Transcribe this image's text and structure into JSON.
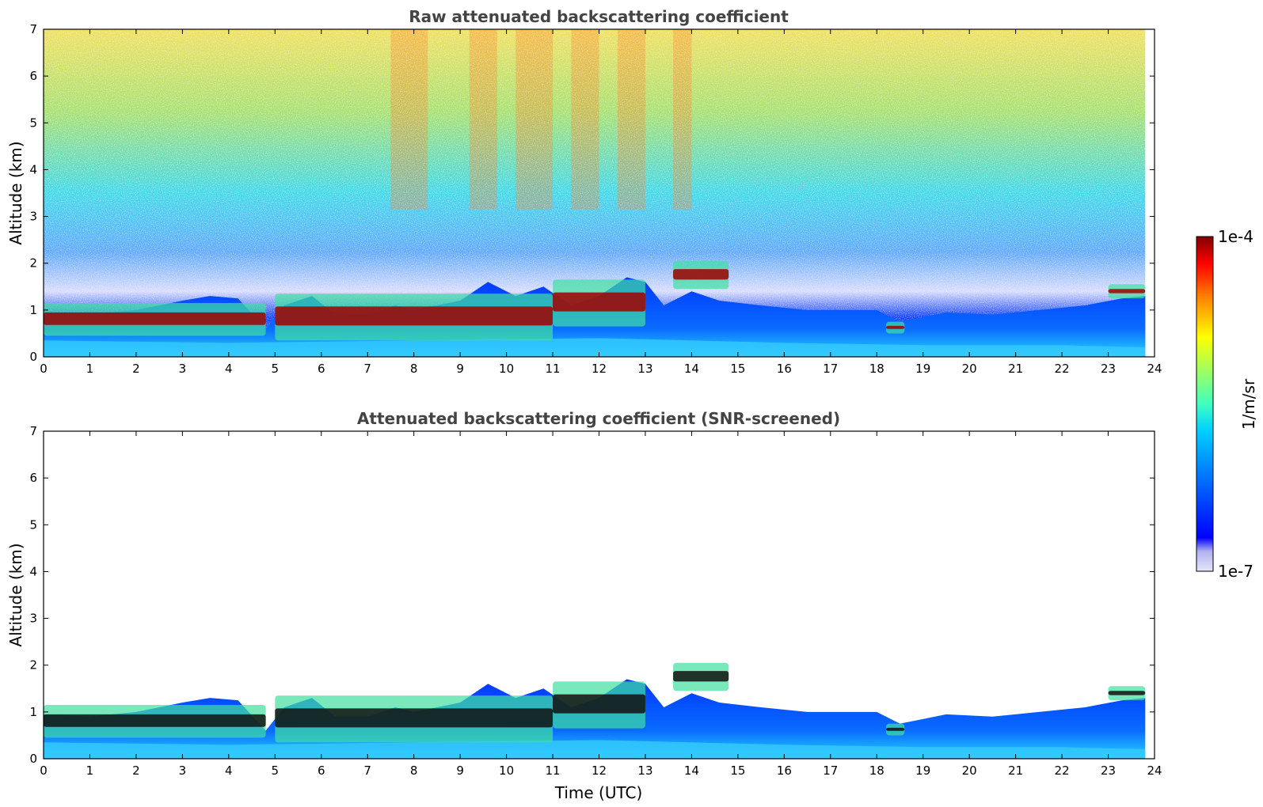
{
  "chart_data": [
    {
      "type": "heatmap",
      "title": "Raw attenuated backscattering coefficient",
      "xlabel": "",
      "ylabel": "Altitude (km)",
      "xlim": [
        0,
        24
      ],
      "ylim": [
        0,
        7
      ],
      "xticks": [
        "0",
        "1",
        "2",
        "3",
        "4",
        "5",
        "6",
        "7",
        "8",
        "9",
        "10",
        "11",
        "12",
        "13",
        "14",
        "15",
        "16",
        "17",
        "18",
        "19",
        "20",
        "21",
        "22",
        "23",
        "24"
      ],
      "yticks": [
        "0",
        "1",
        "2",
        "3",
        "4",
        "5",
        "6",
        "7"
      ],
      "data_extent_hours": [
        0,
        23.8
      ],
      "layers": [
        {
          "feature": "boundary layer cloud",
          "hours": [
            0,
            4.8
          ],
          "altitude_km": [
            0.5,
            1.1
          ]
        },
        {
          "feature": "broken cloud",
          "hours": [
            5,
            11
          ],
          "altitude_km": [
            0.4,
            1.3
          ]
        },
        {
          "feature": "cloud",
          "hours": [
            11,
            13
          ],
          "altitude_km": [
            0.7,
            1.6
          ]
        },
        {
          "feature": "elevated cloud",
          "hours": [
            13.6,
            14.8
          ],
          "altitude_km": [
            1.5,
            2.0
          ]
        },
        {
          "feature": "small cloud",
          "hours": [
            18.2,
            18.6
          ],
          "altitude_km": [
            0.55,
            0.7
          ]
        },
        {
          "feature": "cloud",
          "hours": [
            23,
            23.8
          ],
          "altitude_km": [
            1.3,
            1.5
          ]
        }
      ]
    },
    {
      "type": "heatmap",
      "title": "Attenuated backscattering coefficient (SNR-screened)",
      "xlabel": "Time (UTC)",
      "ylabel": "Altitude (km)",
      "xlim": [
        0,
        24
      ],
      "ylim": [
        0,
        7
      ],
      "xticks": [
        "0",
        "1",
        "2",
        "3",
        "4",
        "5",
        "6",
        "7",
        "8",
        "9",
        "10",
        "11",
        "12",
        "13",
        "14",
        "15",
        "16",
        "17",
        "18",
        "19",
        "20",
        "21",
        "22",
        "23",
        "24"
      ],
      "yticks": [
        "0",
        "1",
        "2",
        "3",
        "4",
        "5",
        "6",
        "7"
      ],
      "data_extent_hours": [
        0,
        23.8
      ],
      "screened": true
    }
  ],
  "colorbar": {
    "label": "1/m/sr",
    "max_label": "1e-4",
    "min_label": "1e-7",
    "scale": "log",
    "colormap": "jet",
    "colors": [
      "#e6e6fa",
      "#b0b0f0",
      "#0000ff",
      "#0080ff",
      "#00d0ff",
      "#40ffc0",
      "#a0ff60",
      "#ffff00",
      "#ff8000",
      "#ff0000",
      "#800000"
    ]
  }
}
